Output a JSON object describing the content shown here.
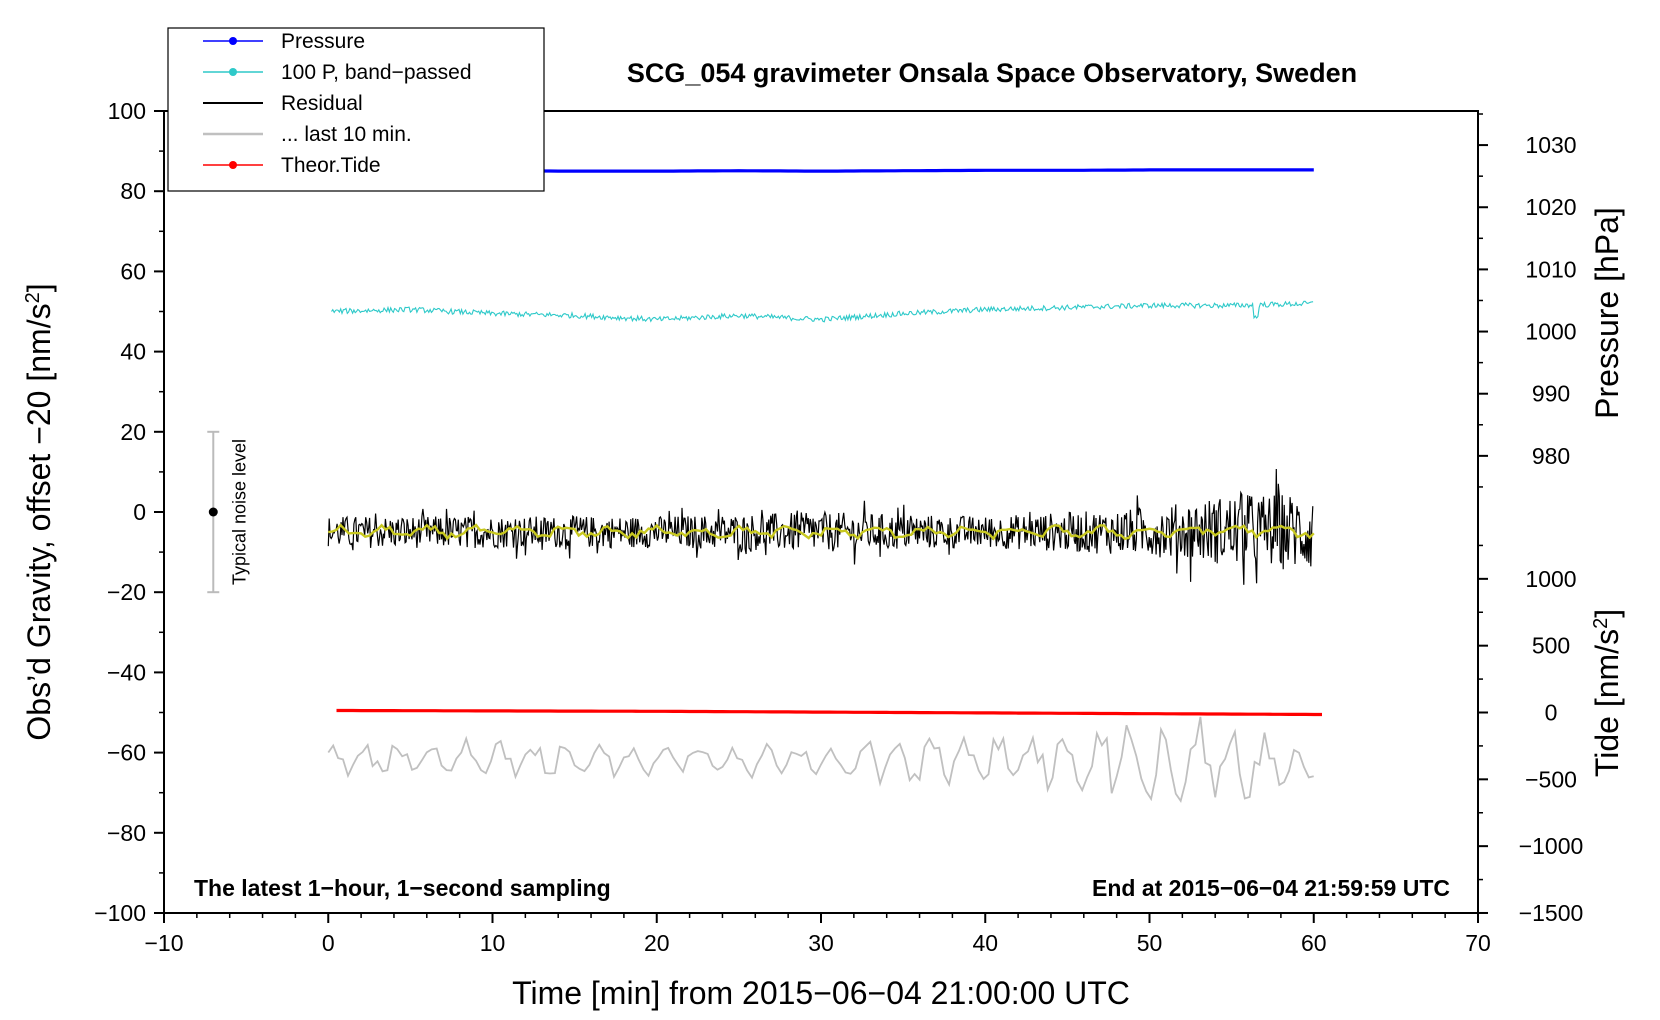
{
  "chart_data": {
    "type": "line",
    "title": "SCG_054 gravimeter Onsala Space Observatory, Sweden",
    "xlabel": "Time [min] from 2015−06−04 21:00:00 UTC",
    "ylabel_left": "Obs’d Gravity, offset −20 [nm/s",
    "ylabel_left_sup": "2",
    "ylabel_left_end": "]",
    "ylabel_pressure": "Pressure [hPa]",
    "ylabel_tide": "Tide [nm/s",
    "ylabel_tide_sup": "2",
    "ylabel_tide_end": "]",
    "xlim": [
      -10,
      70
    ],
    "ylim": [
      -100,
      100
    ],
    "x_ticks": [
      {
        "v": -10,
        "label": "−10"
      },
      {
        "v": 0,
        "label": "0"
      },
      {
        "v": 10,
        "label": "10"
      },
      {
        "v": 20,
        "label": "20"
      },
      {
        "v": 30,
        "label": "30"
      },
      {
        "v": 40,
        "label": "40"
      },
      {
        "v": 50,
        "label": "50"
      },
      {
        "v": 60,
        "label": "60"
      },
      {
        "v": 70,
        "label": "70"
      }
    ],
    "y_ticks": [
      {
        "v": 100,
        "label": "100"
      },
      {
        "v": 80,
        "label": "80"
      },
      {
        "v": 60,
        "label": "60"
      },
      {
        "v": 40,
        "label": "40"
      },
      {
        "v": 20,
        "label": "20"
      },
      {
        "v": 0,
        "label": "0"
      },
      {
        "v": -20,
        "label": "−20"
      },
      {
        "v": -40,
        "label": "−40"
      },
      {
        "v": -60,
        "label": "−60"
      },
      {
        "v": -80,
        "label": "−80"
      },
      {
        "v": -100,
        "label": "−100"
      }
    ],
    "pressure_axis": {
      "ticks": [
        {
          "v": 1030,
          "label": "1030"
        },
        {
          "v": 1020,
          "label": "1020"
        },
        {
          "v": 1010,
          "label": "1010"
        },
        {
          "v": 1000,
          "label": "1000"
        },
        {
          "v": 990,
          "label": "990"
        },
        {
          "v": 980,
          "label": "980"
        }
      ],
      "ref_hpa": 1000,
      "ref_y": 45,
      "y_per_hpa": 1.55
    },
    "tide_axis": {
      "ticks": [
        {
          "v": 1000,
          "label": "1000"
        },
        {
          "v": 500,
          "label": "500"
        },
        {
          "v": 0,
          "label": "0"
        },
        {
          "v": -500,
          "label": "−500"
        },
        {
          "v": -1000,
          "label": "−1000"
        },
        {
          "v": -1500,
          "label": "−1500"
        }
      ],
      "ref_nms2": 0,
      "ref_y": -50,
      "y_per_nms2": 0.03333
    },
    "series": [
      {
        "name": "Pressure",
        "color": "#0000ff",
        "style": "line-dot",
        "x": [
          0,
          5,
          10,
          15,
          20,
          25,
          30,
          35,
          40,
          45,
          50,
          55,
          60
        ],
        "y": [
          85.2,
          85.1,
          85.1,
          85.0,
          85.0,
          85.1,
          85.0,
          85.1,
          85.2,
          85.2,
          85.3,
          85.3,
          85.3
        ]
      },
      {
        "name": "100 P, band−passed",
        "color": "#2ec9c9",
        "style": "line-dot",
        "x": [
          0,
          5,
          10,
          15,
          20,
          25,
          30,
          35,
          40,
          45,
          50,
          55,
          60
        ],
        "y": [
          50.0,
          50.5,
          49.5,
          49.0,
          48.0,
          49.0,
          48.0,
          49.5,
          50.5,
          51.0,
          51.5,
          51.5,
          52.0
        ]
      },
      {
        "name": "Residual",
        "color": "#000000",
        "style": "line",
        "x": [
          0,
          10,
          20,
          30,
          40,
          50,
          55,
          60
        ],
        "y": [
          -5,
          -5,
          -5,
          -5,
          -5,
          -5,
          -4.5,
          -5
        ],
        "noise_amplitude": [
          4,
          4,
          4,
          5,
          4,
          6,
          9,
          10
        ]
      },
      {
        "name": "... last 10 min.",
        "color": "#c0c0c0",
        "style": "line",
        "x": [
          0,
          10,
          20,
          30,
          40,
          50,
          55,
          60
        ],
        "y": [
          -62,
          -62,
          -62,
          -62,
          -62,
          -62,
          -62,
          -63
        ],
        "swing_amplitude": [
          4,
          6,
          4,
          5,
          7,
          12,
          13,
          6
        ]
      },
      {
        "name": "Theor.Tide",
        "color": "#ff0000",
        "style": "line-dot",
        "x": [
          0.5,
          10,
          20,
          30,
          40,
          50,
          60.5
        ],
        "y": [
          -49.5,
          -49.6,
          -49.7,
          -49.9,
          -50.1,
          -50.3,
          -50.5
        ]
      }
    ],
    "smoothed_residual_color": "#c8c820",
    "noise_bar": {
      "x": -7,
      "center": 0,
      "low": -20,
      "high": 20,
      "label": "Typical noise level"
    },
    "annotation_left": "The latest 1−hour, 1−second sampling",
    "annotation_right": "End at 2015−06−04 21:59:59 UTC",
    "legend_position": "top-left"
  }
}
